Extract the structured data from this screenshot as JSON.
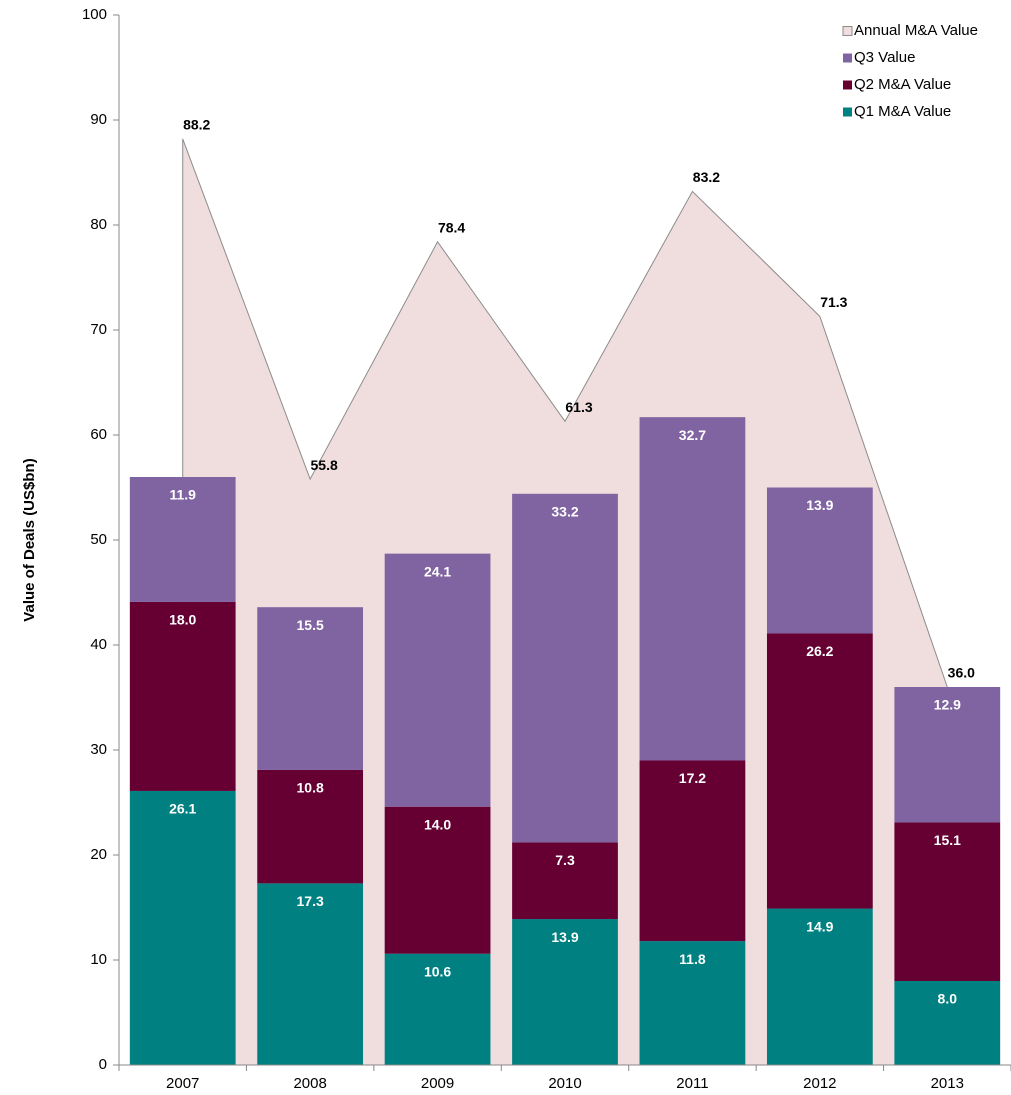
{
  "chart_data": {
    "type": "stacked-bar-area",
    "y_label": "Value of Deals (US$bn)",
    "categories": [
      "2007",
      "2008",
      "2009",
      "2010",
      "2011",
      "2012",
      "2013"
    ],
    "ylim": [
      0,
      100
    ],
    "yticks": [
      0,
      10,
      20,
      30,
      40,
      50,
      60,
      70,
      80,
      90,
      100
    ],
    "legend": "upper right",
    "area": {
      "name": "Annual M&A Value",
      "color": "#f0dddd",
      "line_color": "#8c8c8c",
      "values": [
        88.2,
        55.8,
        78.4,
        61.3,
        83.2,
        71.3,
        36.0
      ],
      "value_labels": [
        "88.2",
        "55.8",
        "78.4",
        "61.3",
        "83.2",
        "71.3",
        "36.0"
      ]
    },
    "series": [
      {
        "name": "Q1 M&A Value",
        "color": "#008080",
        "values": [
          26.1,
          17.3,
          10.6,
          13.9,
          11.8,
          14.9,
          8.0
        ],
        "value_labels": [
          "26.1",
          "17.3",
          "10.6",
          "13.9",
          "11.8",
          "14.9",
          "8.0"
        ]
      },
      {
        "name": "Q2 M&A Value",
        "color": "#660033",
        "values": [
          18.0,
          10.8,
          14.0,
          7.3,
          17.2,
          26.2,
          15.1
        ],
        "value_labels": [
          "18.0",
          "10.8",
          "14.0",
          "7.3",
          "17.2",
          "26.2",
          "15.1"
        ]
      },
      {
        "name": "Q3 Value",
        "color": "#8064a2",
        "values": [
          11.9,
          15.5,
          24.1,
          33.2,
          32.7,
          13.9,
          12.9
        ],
        "value_labels": [
          "11.9",
          "15.5",
          "24.1",
          "33.2",
          "32.7",
          "13.9",
          "12.9"
        ]
      }
    ]
  }
}
